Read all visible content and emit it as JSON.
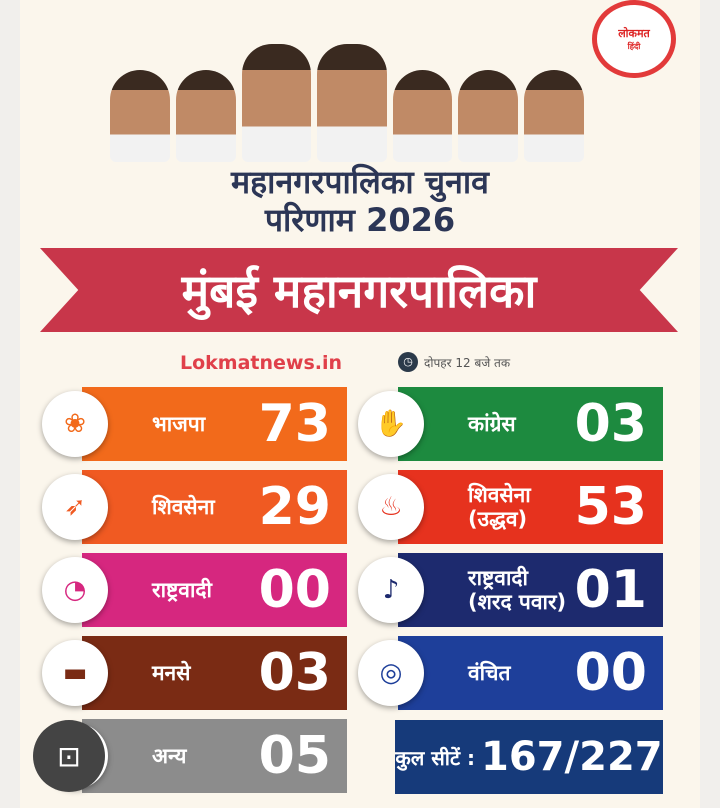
{
  "logo": {
    "text": "लोकमत",
    "sub": "हिंदी"
  },
  "title": {
    "line1": "महानगरपालिका चुनाव",
    "line2": "परिणाम 2026"
  },
  "banner": "मुंबई महानगरपालिका",
  "source": "Lokmatnews.in",
  "time": "दोपहर 12 बजे तक",
  "left": [
    {
      "party": "भाजपा",
      "seats": "73",
      "color": "#f26a1b",
      "icon": "lotus-icon"
    },
    {
      "party": "शिवसेना",
      "seats": "29",
      "color": "#f05a22",
      "icon": "bow-arrow-icon"
    },
    {
      "party": "राष्ट्रवादी",
      "seats": "00",
      "color": "#d6277f",
      "icon": "clock-icon"
    },
    {
      "party": "मनसे",
      "seats": "03",
      "color": "#7a2b14",
      "icon": "railway-engine-icon"
    },
    {
      "party": "अन्य",
      "seats": "05",
      "color": "#8c8c8c",
      "icon": "other-icon"
    }
  ],
  "right": [
    {
      "party": "कांग्रेस",
      "seats": "03",
      "color": "#1d8a3f",
      "icon": "hand-icon"
    },
    {
      "party": "शिवसेना (उद्धव)",
      "seats": "53",
      "color": "#e6321e",
      "icon": "torch-icon"
    },
    {
      "party": "राष्ट्रवादी (शरद पवार)",
      "seats": "01",
      "color": "#1d2a6e",
      "icon": "tutari-icon"
    },
    {
      "party": "वंचित",
      "seats": "00",
      "color": "#1e3f9a",
      "icon": "gas-cylinder-icon"
    }
  ],
  "total": {
    "label": "कुल सीटें :",
    "value": "167/227"
  }
}
